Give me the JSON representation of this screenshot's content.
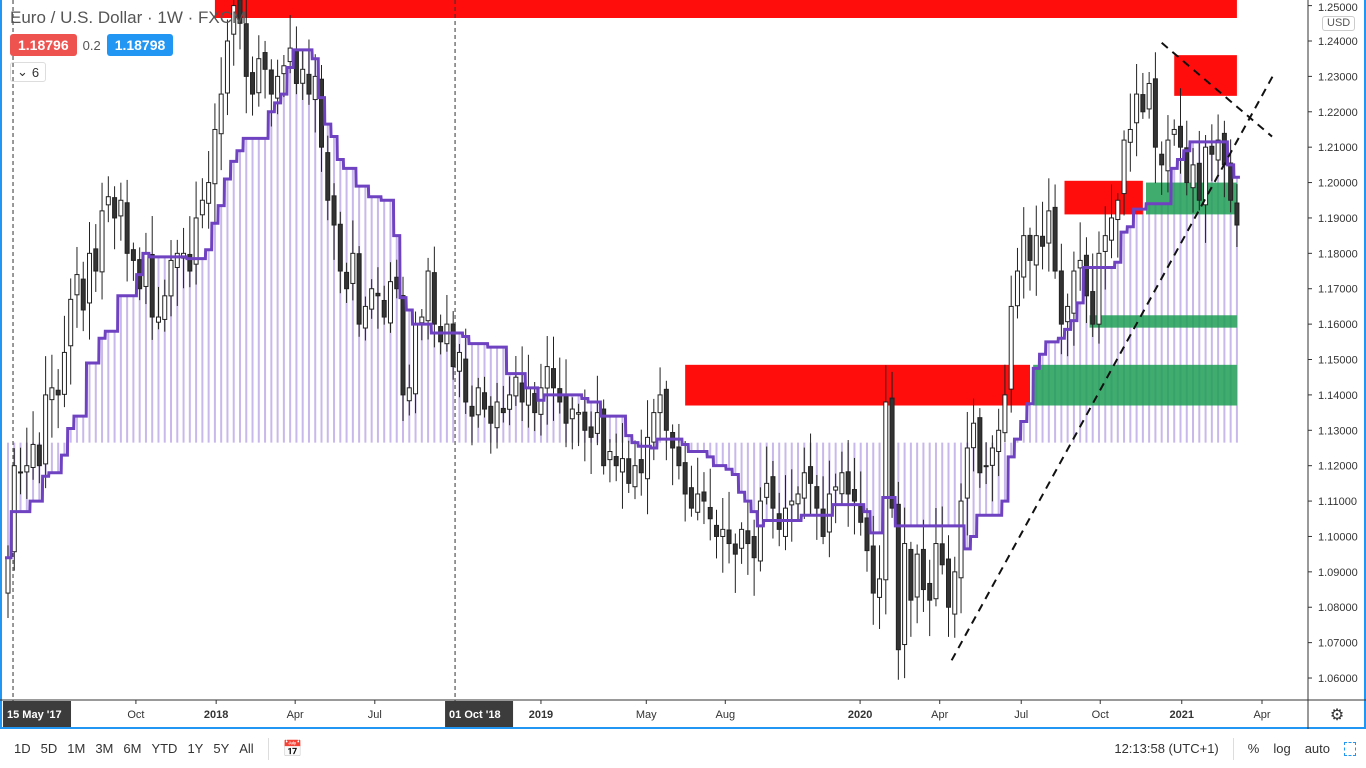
{
  "header": {
    "title": "Euro / U.S. Dollar · 1W · FXCM",
    "bid": "1.18796",
    "spread": "0.2",
    "ask": "1.18798",
    "bid_color": "#ef5350",
    "ask_color": "#2196f3",
    "indicators_count": "6"
  },
  "price_axis": {
    "currency": "USD",
    "ticks": [
      "1.25000",
      "1.24000",
      "1.23000",
      "1.22000",
      "1.21000",
      "1.20000",
      "1.19000",
      "1.18000",
      "1.17000",
      "1.16000",
      "1.15000",
      "1.14000",
      "1.13000",
      "1.12000",
      "1.11000",
      "1.10000",
      "1.09000",
      "1.08000",
      "1.07000",
      "1.06000"
    ]
  },
  "time_axis": {
    "ticks": [
      {
        "label": "15 May '17",
        "week": 0.8,
        "highlight": true
      },
      {
        "label": "Oct",
        "week": 20.4
      },
      {
        "label": "2018",
        "week": 33.2,
        "bold": true
      },
      {
        "label": "Apr",
        "week": 45.8
      },
      {
        "label": "Jul",
        "week": 58.5
      },
      {
        "label": "01 Oct '18",
        "week": 71.3,
        "highlight": true
      },
      {
        "label": "2019",
        "week": 85,
        "bold": true
      },
      {
        "label": "May",
        "week": 101.8
      },
      {
        "label": "Aug",
        "week": 114.4
      },
      {
        "label": "2020",
        "week": 135.9,
        "bold": true
      },
      {
        "label": "Apr",
        "week": 148.6
      },
      {
        "label": "Jul",
        "week": 161.6
      },
      {
        "label": "Oct",
        "week": 174.2
      },
      {
        "label": "2021",
        "week": 187.2,
        "bold": true
      },
      {
        "label": "Apr",
        "week": 200
      }
    ]
  },
  "toolbar": {
    "ranges": [
      "1D",
      "5D",
      "1M",
      "3M",
      "6M",
      "YTD",
      "1Y",
      "5Y",
      "All"
    ],
    "time": "12:13:58 (UTC+1)",
    "percent": "%",
    "log": "log",
    "auto": "auto"
  },
  "chart_data": {
    "type": "candlestick",
    "interval": "1W",
    "ylim": [
      1.058,
      1.252
    ],
    "closes": [
      1.094,
      1.12,
      1.118,
      1.12,
      1.126,
      1.12,
      1.14,
      1.142,
      1.14,
      1.152,
      1.167,
      1.174,
      1.164,
      1.18,
      1.175,
      1.192,
      1.196,
      1.19,
      1.195,
      1.18,
      1.178,
      1.17,
      1.18,
      1.162,
      1.162,
      1.168,
      1.178,
      1.18,
      1.18,
      1.175,
      1.19,
      1.195,
      1.2,
      1.215,
      1.225,
      1.24,
      1.25,
      1.245,
      1.23,
      1.225,
      1.235,
      1.232,
      1.225,
      1.23,
      1.233,
      1.238,
      1.228,
      1.232,
      1.225,
      1.23,
      1.21,
      1.195,
      1.188,
      1.175,
      1.17,
      1.18,
      1.16,
      1.165,
      1.17,
      1.168,
      1.162,
      1.172,
      1.17,
      1.14,
      1.142,
      1.16,
      1.162,
      1.175,
      1.16,
      1.155,
      1.16,
      1.148,
      1.152,
      1.138,
      1.134,
      1.142,
      1.136,
      1.132,
      1.138,
      1.135,
      1.14,
      1.145,
      1.138,
      1.142,
      1.135,
      1.142,
      1.148,
      1.142,
      1.138,
      1.132,
      1.136,
      1.135,
      1.13,
      1.128,
      1.135,
      1.12,
      1.124,
      1.12,
      1.122,
      1.115,
      1.12,
      1.118,
      1.128,
      1.135,
      1.14,
      1.13,
      1.125,
      1.12,
      1.112,
      1.108,
      1.112,
      1.11,
      1.105,
      1.1,
      1.102,
      1.098,
      1.095,
      1.102,
      1.098,
      1.094,
      1.11,
      1.115,
      1.108,
      1.102,
      1.108,
      1.11,
      1.112,
      1.118,
      1.115,
      1.108,
      1.1,
      1.112,
      1.114,
      1.118,
      1.112,
      1.11,
      1.104,
      1.096,
      1.084,
      1.088,
      1.138,
      1.108,
      1.068,
      1.098,
      1.082,
      1.095,
      1.085,
      1.082,
      1.098,
      1.092,
      1.08,
      1.09,
      1.11,
      1.125,
      1.132,
      1.118,
      1.12,
      1.125,
      1.13,
      1.14,
      1.165,
      1.175,
      1.185,
      1.178,
      1.185,
      1.182,
      1.192,
      1.175,
      1.16,
      1.165,
      1.175,
      1.178,
      1.168,
      1.16,
      1.18,
      1.185,
      1.19,
      1.195,
      1.212,
      1.215,
      1.225,
      1.22,
      1.228,
      1.21,
      1.205,
      1.212,
      1.215,
      1.21,
      1.2,
      1.205,
      1.195,
      1.21,
      1.208,
      1.212,
      1.205,
      1.195,
      1.188
    ],
    "zones": [
      {
        "type": "supply",
        "color": "#ff0000",
        "from_week": 33,
        "to_week": 196,
        "top": 1.252,
        "bottom": 1.2465
      },
      {
        "type": "supply",
        "color": "#ff0000",
        "from_week": 108,
        "to_week": 163,
        "top": 1.1485,
        "bottom": 1.137
      },
      {
        "type": "demand",
        "color": "#1e9e55",
        "from_week": 163.5,
        "to_week": 196,
        "top": 1.1485,
        "bottom": 1.137
      },
      {
        "type": "supply",
        "color": "#ff0000",
        "from_week": 168.5,
        "to_week": 181,
        "top": 1.2005,
        "bottom": 1.191
      },
      {
        "type": "demand",
        "color": "#1e9e55",
        "from_week": 181.5,
        "to_week": 196,
        "top": 1.2,
        "bottom": 1.191
      },
      {
        "type": "demand",
        "color": "#1e9e55",
        "from_week": 172.5,
        "to_week": 196,
        "top": 1.1625,
        "bottom": 1.159
      },
      {
        "type": "supply",
        "color": "#ff0000",
        "from_week": 186,
        "to_week": 196,
        "top": 1.236,
        "bottom": 1.2245
      }
    ],
    "trendlines": [
      {
        "from": [
          150.5,
          1.065
        ],
        "to": [
          202,
          1.231
        ]
      },
      {
        "from": [
          184,
          1.2395
        ],
        "to": [
          201.6,
          1.213
        ]
      }
    ],
    "vertical_markers": [
      0.8,
      71.3
    ],
    "indicator_color": "#6f42c1",
    "indicator_base": 1.1265
  }
}
